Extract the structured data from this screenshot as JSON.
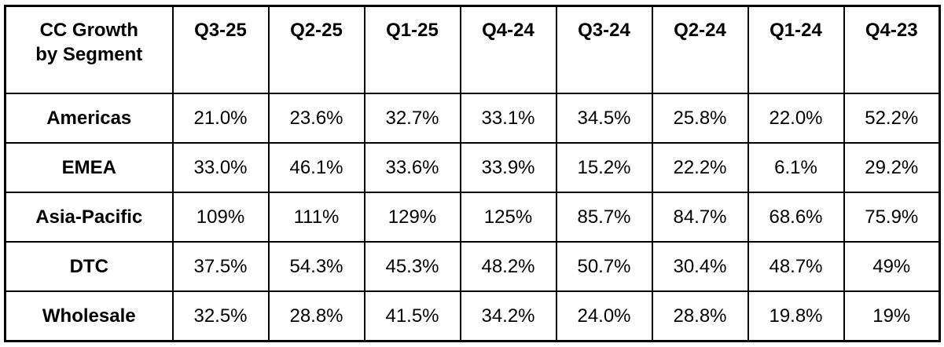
{
  "colors": {
    "border": "#000000",
    "text": "#000000",
    "background": "#ffffff"
  },
  "corner": {
    "line1": "CC Growth",
    "line2": "by Segment"
  },
  "chart_data": {
    "type": "table",
    "title": "CC Growth by Segment",
    "columns": [
      "Q3-25",
      "Q2-25",
      "Q1-25",
      "Q4-24",
      "Q3-24",
      "Q2-24",
      "Q1-24",
      "Q4-23"
    ],
    "rows": [
      {
        "label": "Americas",
        "values": [
          "21.0%",
          "23.6%",
          "32.7%",
          "33.1%",
          "34.5%",
          "25.8%",
          "22.0%",
          "52.2%"
        ]
      },
      {
        "label": "EMEA",
        "values": [
          "33.0%",
          "46.1%",
          "33.6%",
          "33.9%",
          "15.2%",
          "22.2%",
          "6.1%",
          "29.2%"
        ]
      },
      {
        "label": "Asia-Pacific",
        "values": [
          "109%",
          "111%",
          "129%",
          "125%",
          "85.7%",
          "84.7%",
          "68.6%",
          "75.9%"
        ]
      },
      {
        "label": "DTC",
        "values": [
          "37.5%",
          "54.3%",
          "45.3%",
          "48.2%",
          "50.7%",
          "30.4%",
          "48.7%",
          "49%"
        ]
      },
      {
        "label": "Wholesale",
        "values": [
          "32.5%",
          "28.8%",
          "41.5%",
          "34.2%",
          "24.0%",
          "28.8%",
          "19.8%",
          "19%"
        ]
      }
    ]
  }
}
